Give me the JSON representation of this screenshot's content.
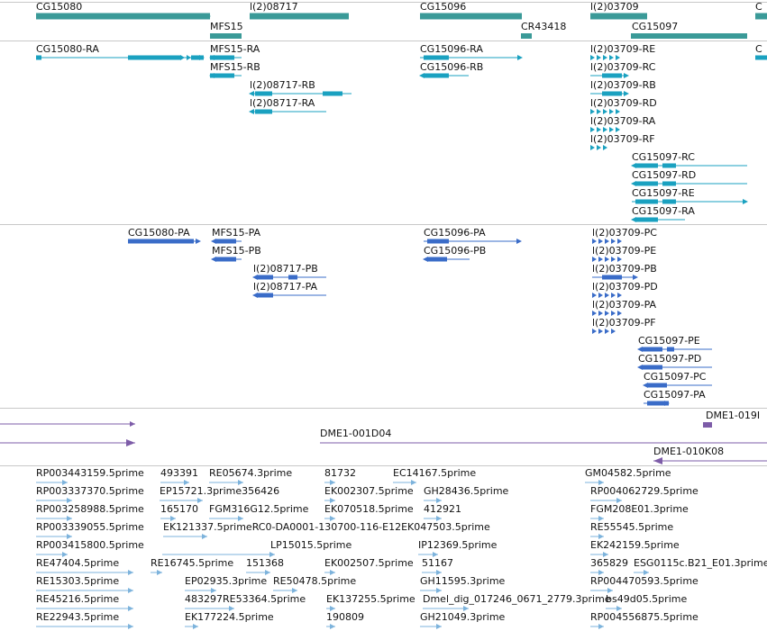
{
  "colors": {
    "gene": "#3a9a98",
    "transcript": "#1aa1c0",
    "protein": "#3a6cc8",
    "scaffold": "#7d5ca8",
    "est": "#7db3dc",
    "separator": "#c8c8c8"
  },
  "tracks": {
    "genes": [
      "CG15080",
      "MFS15",
      "l(2)08717",
      "CG15096",
      "CR43418",
      "l(2)03709",
      "CG15097",
      "C"
    ],
    "transcripts": [
      "CG15080-RA",
      "MFS15-RA",
      "MFS15-RB",
      "l(2)08717-RB",
      "l(2)08717-RA",
      "CG15096-RA",
      "CG15096-RB",
      "l(2)03709-RE",
      "l(2)03709-RC",
      "l(2)03709-RB",
      "l(2)03709-RD",
      "l(2)03709-RA",
      "l(2)03709-RF",
      "CG15097-RC",
      "CG15097-RD",
      "CG15097-RE",
      "CG15097-RA",
      "C"
    ],
    "proteins": [
      "CG15080-PA",
      "MFS15-PA",
      "MFS15-PB",
      "l(2)08717-PB",
      "l(2)08717-PA",
      "CG15096-PA",
      "CG15096-PB",
      "l(2)03709-PC",
      "l(2)03709-PE",
      "l(2)03709-PB",
      "l(2)03709-PD",
      "l(2)03709-PA",
      "l(2)03709-PF",
      "CG15097-PE",
      "CG15097-PD",
      "CG15097-PC",
      "CG15097-PA"
    ],
    "scaffolds": [
      "DME1-019I",
      "DME1-001D04",
      "DME1-010K08"
    ],
    "ests": [
      "RP003443159.5prime",
      "493391",
      "RE05674.3prime",
      "81732",
      "EC14167.5prime",
      "GM04582.5prime",
      "RP003337370.5prime",
      "EP15721.3prime356426",
      "EK002307.5prime",
      "GH28436.5prime",
      "RP004062729.5prime",
      "RP003258988.5prime",
      "165170",
      "FGM316G12.5prime",
      "EK070518.5prime",
      "412921",
      "FGM208E01.3prime",
      "RP003339055.5prime",
      "EK121337.5primeRC0-DA0001-130700-116-E12EK047503.5prime",
      "RE55545.5prime",
      "RP003415800.5prime",
      "LP15015.5prime",
      "IP12369.5prime",
      "EK242159.5prime",
      "RE47404.5prime",
      "RE16745.5prime",
      "151368",
      "EK002507.5prime",
      "51167",
      "365829",
      "ESG0115c.B21_E01.3prime",
      "RE15303.5prime",
      "EP02935.3prime",
      "RE50478.5prime",
      "GH11595.3prime",
      "RP004470593.5prime",
      "RE45216.5prime",
      "483297RE53364.5prime",
      "EK137255.5prime",
      "Dmel_dig_017246_0671_2779.3prime",
      "bs49d05.5prime",
      "RE22943.5prime",
      "EK177224.5prime",
      "190809",
      "GH21049.3prime",
      "RP004556875.5prime"
    ]
  }
}
